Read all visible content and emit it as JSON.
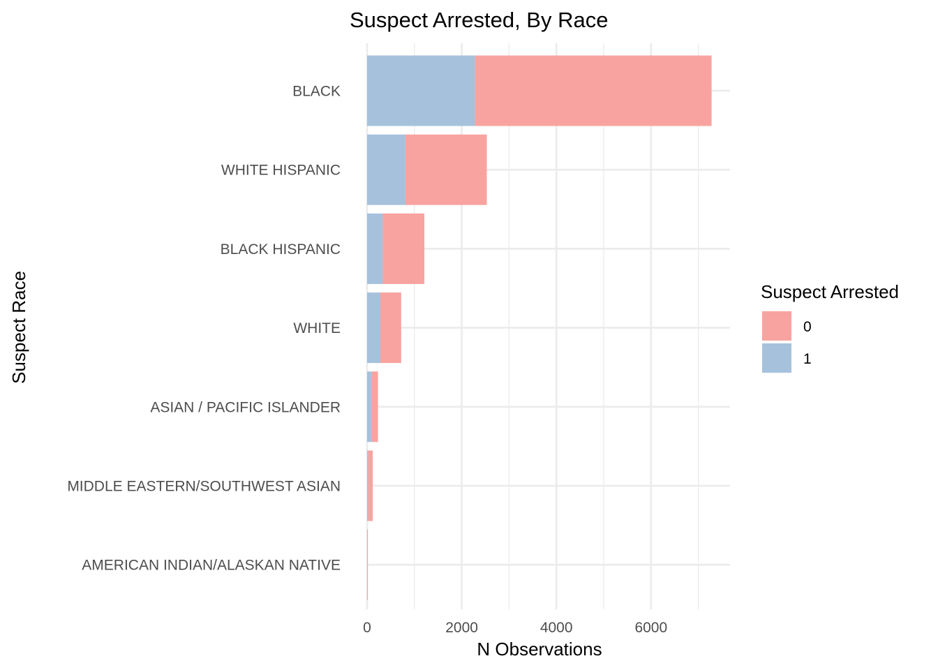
{
  "chart_data": {
    "type": "bar",
    "orientation": "horizontal",
    "stacked": true,
    "title": "Suspect Arrested, By Race",
    "xlabel": "N Observations",
    "ylabel": "Suspect Race",
    "xlim": [
      0,
      7300
    ],
    "x_ticks": [
      0,
      2000,
      4000,
      6000
    ],
    "grid": true,
    "legend_position": "right",
    "legend_title": "Suspect Arrested",
    "categories": [
      "BLACK",
      "WHITE HISPANIC",
      "BLACK HISPANIC",
      "WHITE",
      "ASIAN / PACIFIC ISLANDER",
      "MIDDLE EASTERN/SOUTHWEST ASIAN",
      "AMERICAN INDIAN/ALASKAN NATIVE"
    ],
    "series": [
      {
        "name": "0",
        "color": "#F8A3A0",
        "values": [
          5000,
          1720,
          880,
          440,
          130,
          100,
          6
        ]
      },
      {
        "name": "1",
        "color": "#A6C1DC",
        "values": [
          2280,
          810,
          330,
          280,
          100,
          20,
          4
        ]
      }
    ],
    "stack_order": [
      "1",
      "0"
    ]
  }
}
